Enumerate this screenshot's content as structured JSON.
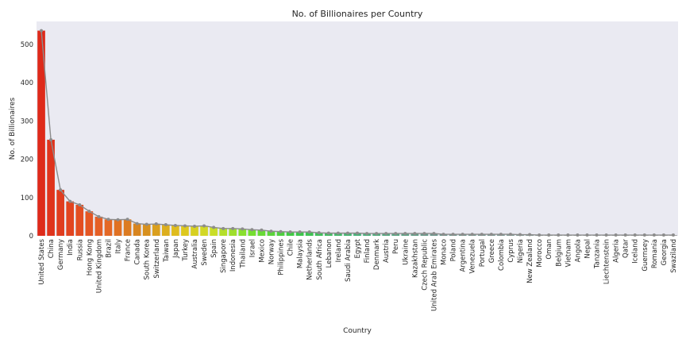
{
  "chart_data": {
    "type": "bar",
    "title": "No. of Billionaires per Country",
    "xlabel": "Country",
    "ylabel": "No. of Billionaires",
    "ylim": [
      0,
      560
    ],
    "yticks": [
      0,
      100,
      200,
      300,
      400,
      500
    ],
    "grid": false,
    "overlay": "line with point markers over bar tops",
    "palette": "gradient red to orange to yellow to green to teal to grey",
    "categories": [
      "United States",
      "China",
      "Germany",
      "India",
      "Russia",
      "Hong Kong",
      "United Kingdom",
      "Brazil",
      "Italy",
      "France",
      "Canada",
      "South Korea",
      "Switzerland",
      "Taiwan",
      "Japan",
      "Turkey",
      "Australia",
      "Sweden",
      "Spain",
      "Singapore",
      "Indonesia",
      "Thailand",
      "Israel",
      "Mexico",
      "Norway",
      "Philippines",
      "Chile",
      "Malaysia",
      "Netherlands",
      "South Africa",
      "Lebanon",
      "Ireland",
      "Saudi Arabia",
      "Egypt",
      "Finland",
      "Denmark",
      "Austria",
      "Peru",
      "Ukraine",
      "Kazakhstan",
      "Czech Republic",
      "United Arab Emirates",
      "Monaco",
      "Poland",
      "Argentina",
      "Venezuela",
      "Portugal",
      "Greece",
      "Colombia",
      "Cyprus",
      "Nigeria",
      "New Zealand",
      "Morocco",
      "Oman",
      "Belgium",
      "Vietnam",
      "Angola",
      "Nepal",
      "Tanzania",
      "Liechtenstein",
      "Algeria",
      "Qatar",
      "Iceland",
      "Guernsey",
      "Romania",
      "Georgia",
      "Swaziland"
    ],
    "values": [
      536,
      251,
      120,
      90,
      81,
      64,
      50,
      43,
      42,
      43,
      32,
      30,
      31,
      29,
      27,
      26,
      25,
      26,
      22,
      19,
      19,
      18,
      16,
      15,
      12,
      11,
      10,
      10,
      10,
      8,
      7,
      7,
      7,
      7,
      6,
      6,
      6,
      6,
      6,
      6,
      6,
      6,
      4,
      4,
      4,
      4,
      4,
      4,
      4,
      4,
      3,
      3,
      2,
      2,
      2,
      2,
      2,
      2,
      2,
      2,
      2,
      2,
      2,
      2,
      2,
      2,
      2
    ]
  }
}
